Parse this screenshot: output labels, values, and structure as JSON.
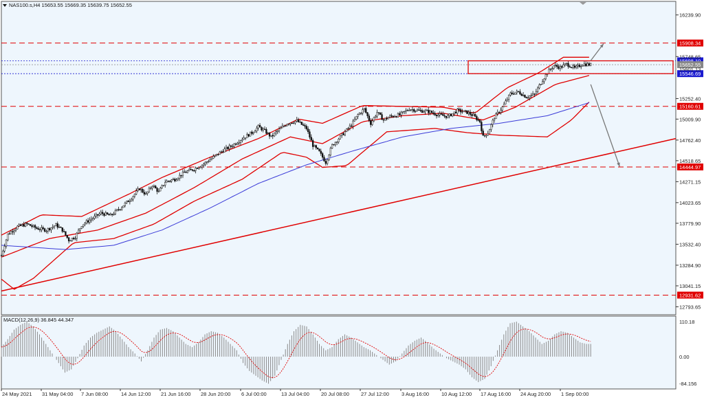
{
  "header": {
    "symbol_line": "NAS100.s,H4   15653.55  15669.35  15639.75  15652.55"
  },
  "colors": {
    "background": "#eef6fd",
    "candle": "#111111",
    "band": "#e00000",
    "ma": "#3a3ad8",
    "trendline": "#e00000",
    "level": "#e00000",
    "macd_hist": "#8a8a8a",
    "macd_signal": "#e00000"
  },
  "price_axis_labels": [
    "16239.90",
    "15748.65",
    "15252.40",
    "15009.90",
    "14762.40",
    "14518.65",
    "14271.15",
    "14023.65",
    "13779.90",
    "13532.40",
    "13284.90",
    "13041.15",
    "12793.65"
  ],
  "levels": [
    {
      "price": 15908.34,
      "label": "15908.34",
      "style": "dash"
    },
    {
      "price": 15160.61,
      "label": "15160.61",
      "style": "dash"
    },
    {
      "price": 14444.97,
      "label": "14444.97",
      "style": "dash"
    },
    {
      "price": 12931.62,
      "label": "12931.62",
      "style": "dash"
    }
  ],
  "zone_lines": [
    {
      "price": 15698.1,
      "label": "15698.10",
      "color": "#1a1ad0"
    },
    {
      "price": 15652.55,
      "label": "15652.55",
      "color": "#888888"
    },
    {
      "price": 15546.69,
      "label": "15546.69",
      "color": "#1a1ad0"
    }
  ],
  "extra_axis_label": "15601.13",
  "time_labels": [
    "24 May 2021",
    "31 May 04:00",
    "7 Jun 08:00",
    "14 Jun 12:00",
    "21 Jun 16:00",
    "28 Jun 20:00",
    "6 Jul 00:00",
    "13 Jul 04:00",
    "20 Jul 08:00",
    "27 Jul 12:00",
    "3 Aug 16:00",
    "10 Aug 12:00",
    "17 Aug 16:00",
    "24 Aug 20:00",
    "1 Sep 00:00"
  ],
  "macd": {
    "title": "MACD(12,26,9) 36.845 44.347",
    "axis_labels": [
      "110.18",
      "0.00",
      "-84.156"
    ]
  },
  "chart_data": {
    "type": "candlestick",
    "title": "NAS100.s,H4",
    "ylim": [
      12700,
      16400
    ],
    "ohlc_last": {
      "open": 15653.55,
      "high": 15669.35,
      "low": 15639.75,
      "close": 15652.55
    },
    "close_path": [
      [
        0,
        13400
      ],
      [
        4,
        13650
      ],
      [
        10,
        13740
      ],
      [
        16,
        13770
      ],
      [
        22,
        13720
      ],
      [
        28,
        13700
      ],
      [
        34,
        13760
      ],
      [
        38,
        13700
      ],
      [
        42,
        13580
      ],
      [
        46,
        13620
      ],
      [
        50,
        13760
      ],
      [
        56,
        13830
      ],
      [
        62,
        13900
      ],
      [
        68,
        13870
      ],
      [
        74,
        13960
      ],
      [
        80,
        14060
      ],
      [
        86,
        14190
      ],
      [
        90,
        14120
      ],
      [
        94,
        14230
      ],
      [
        98,
        14150
      ],
      [
        102,
        14270
      ],
      [
        108,
        14300
      ],
      [
        114,
        14380
      ],
      [
        120,
        14420
      ],
      [
        126,
        14480
      ],
      [
        132,
        14560
      ],
      [
        138,
        14640
      ],
      [
        144,
        14700
      ],
      [
        150,
        14780
      ],
      [
        156,
        14850
      ],
      [
        160,
        14920
      ],
      [
        164,
        14870
      ],
      [
        168,
        14800
      ],
      [
        172,
        14870
      ],
      [
        178,
        14960
      ],
      [
        184,
        14990
      ],
      [
        190,
        14900
      ],
      [
        194,
        14700
      ],
      [
        198,
        14620
      ],
      [
        202,
        14500
      ],
      [
        206,
        14700
      ],
      [
        212,
        14820
      ],
      [
        218,
        14940
      ],
      [
        222,
        15060
      ],
      [
        226,
        15130
      ],
      [
        230,
        14960
      ],
      [
        234,
        15090
      ],
      [
        238,
        15000
      ],
      [
        242,
        15040
      ],
      [
        248,
        15060
      ],
      [
        254,
        15130
      ],
      [
        260,
        15110
      ],
      [
        266,
        15100
      ],
      [
        272,
        15060
      ],
      [
        278,
        15040
      ],
      [
        284,
        15110
      ],
      [
        290,
        15090
      ],
      [
        294,
        15050
      ],
      [
        298,
        14980
      ],
      [
        300,
        14800
      ],
      [
        303,
        14850
      ],
      [
        307,
        15030
      ],
      [
        312,
        15150
      ],
      [
        317,
        15310
      ],
      [
        322,
        15330
      ],
      [
        327,
        15270
      ],
      [
        332,
        15300
      ],
      [
        336,
        15440
      ],
      [
        340,
        15560
      ],
      [
        344,
        15640
      ],
      [
        348,
        15620
      ],
      [
        352,
        15660
      ],
      [
        357,
        15610
      ],
      [
        362,
        15660
      ],
      [
        367,
        15652
      ]
    ],
    "moving_average_path": [
      [
        0,
        13520
      ],
      [
        40,
        13470
      ],
      [
        70,
        13520
      ],
      [
        100,
        13700
      ],
      [
        130,
        13960
      ],
      [
        160,
        14250
      ],
      [
        190,
        14470
      ],
      [
        220,
        14640
      ],
      [
        250,
        14800
      ],
      [
        280,
        14900
      ],
      [
        310,
        14960
      ],
      [
        340,
        15050
      ],
      [
        367,
        15210
      ]
    ],
    "bollinger_upper": [
      [
        0,
        13640
      ],
      [
        25,
        13880
      ],
      [
        50,
        13860
      ],
      [
        80,
        14130
      ],
      [
        100,
        14320
      ],
      [
        130,
        14560
      ],
      [
        160,
        14780
      ],
      [
        185,
        15010
      ],
      [
        200,
        14960
      ],
      [
        225,
        15170
      ],
      [
        250,
        15160
      ],
      [
        275,
        15150
      ],
      [
        295,
        15080
      ],
      [
        315,
        15380
      ],
      [
        335,
        15560
      ],
      [
        350,
        15740
      ],
      [
        367,
        15740
      ]
    ],
    "bollinger_lower": [
      [
        0,
        13120
      ],
      [
        8,
        13000
      ],
      [
        20,
        13130
      ],
      [
        45,
        13550
      ],
      [
        70,
        13600
      ],
      [
        95,
        13770
      ],
      [
        120,
        14040
      ],
      [
        150,
        14300
      ],
      [
        175,
        14620
      ],
      [
        190,
        14560
      ],
      [
        200,
        14440
      ],
      [
        215,
        14460
      ],
      [
        240,
        14860
      ],
      [
        270,
        14900
      ],
      [
        290,
        14850
      ],
      [
        310,
        14820
      ],
      [
        340,
        14800
      ],
      [
        355,
        15000
      ],
      [
        367,
        15230
      ]
    ],
    "bollinger_middle": [
      [
        0,
        13380
      ],
      [
        30,
        13600
      ],
      [
        60,
        13700
      ],
      [
        90,
        13900
      ],
      [
        120,
        14200
      ],
      [
        150,
        14540
      ],
      [
        180,
        14800
      ],
      [
        200,
        14720
      ],
      [
        225,
        14980
      ],
      [
        250,
        15050
      ],
      [
        275,
        15080
      ],
      [
        300,
        15000
      ],
      [
        320,
        15150
      ],
      [
        345,
        15420
      ],
      [
        367,
        15530
      ]
    ],
    "trendline": [
      [
        0,
        12980
      ],
      [
        420,
        14780
      ]
    ],
    "macd_histogram": [
      30,
      55,
      85,
      100,
      110,
      95,
      70,
      40,
      10,
      -20,
      -50,
      -40,
      -5,
      35,
      60,
      75,
      85,
      95,
      80,
      55,
      30,
      10,
      -15,
      20,
      60,
      85,
      90,
      80,
      60,
      40,
      30,
      45,
      70,
      80,
      75,
      60,
      40,
      20,
      -20,
      -45,
      -60,
      -75,
      -85,
      -60,
      -10,
      40,
      80,
      100,
      95,
      70,
      40,
      20,
      30,
      55,
      70,
      60,
      45,
      30,
      20,
      5,
      -10,
      -25,
      -15,
      10,
      35,
      50,
      60,
      45,
      25,
      10,
      -5,
      -15,
      -25,
      -40,
      -65,
      -80,
      -70,
      -30,
      20,
      70,
      105,
      110,
      95,
      80,
      60,
      40,
      50,
      70,
      80,
      75,
      60,
      45,
      40
    ],
    "projection_arrows": [
      {
        "from": [
          367,
          15700
        ],
        "to": [
          375,
          15900
        ]
      },
      {
        "from": [
          367,
          15420
        ],
        "to": [
          385,
          14450
        ]
      }
    ]
  }
}
